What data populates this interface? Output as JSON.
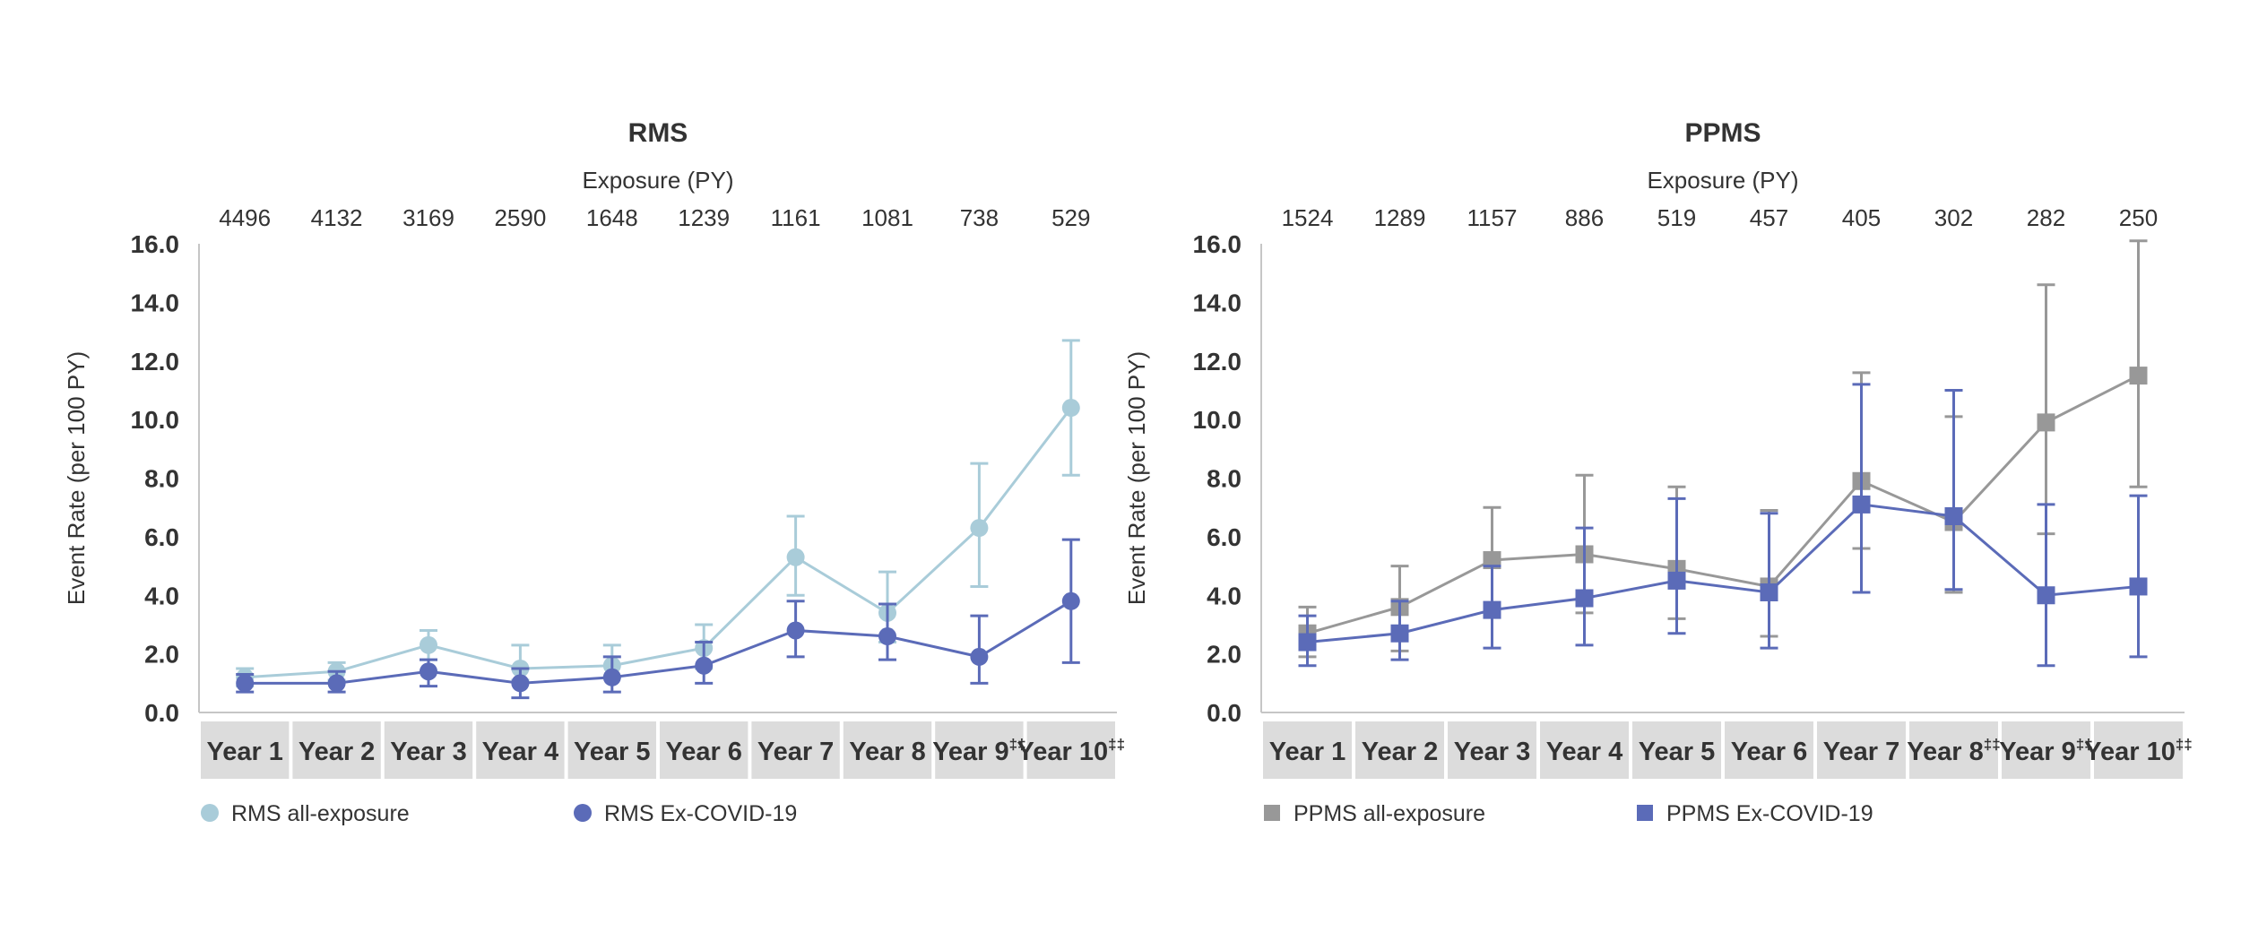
{
  "chart_data": [
    {
      "type": "line",
      "title": "RMS",
      "exposure_label": "Exposure (PY)",
      "exposure": [
        "4496",
        "4132",
        "3169",
        "2590",
        "1648",
        "1239",
        "1161",
        "1081",
        "738",
        "529"
      ],
      "ylabel": "Event Rate (per 100 PY)",
      "ylim": [
        0,
        16
      ],
      "yticks": [
        "0.0",
        "2.0",
        "4.0",
        "6.0",
        "8.0",
        "10.0",
        "12.0",
        "14.0",
        "16.0"
      ],
      "categories": [
        {
          "label": "Year 1",
          "sup": ""
        },
        {
          "label": "Year 2",
          "sup": ""
        },
        {
          "label": "Year 3",
          "sup": ""
        },
        {
          "label": "Year 4",
          "sup": ""
        },
        {
          "label": "Year 5",
          "sup": ""
        },
        {
          "label": "Year 6",
          "sup": ""
        },
        {
          "label": "Year 7",
          "sup": ""
        },
        {
          "label": "Year 8",
          "sup": ""
        },
        {
          "label": "Year 9",
          "sup": "‡‡"
        },
        {
          "label": "Year 10",
          "sup": "‡‡"
        }
      ],
      "grid": false,
      "legend_position": "bottom",
      "series": [
        {
          "name": "RMS all-exposure",
          "color": "#a9ccd9",
          "marker": "circle",
          "values": [
            1.2,
            1.4,
            2.3,
            1.5,
            1.6,
            2.2,
            5.3,
            3.4,
            6.3,
            10.4
          ],
          "lower": [
            0.9,
            1.1,
            1.8,
            1.1,
            1.2,
            1.5,
            4.0,
            2.4,
            4.3,
            8.1
          ],
          "upper": [
            1.5,
            1.7,
            2.8,
            2.3,
            2.3,
            3.0,
            6.7,
            4.8,
            8.5,
            12.7
          ]
        },
        {
          "name": "RMS Ex-COVID-19",
          "color": "#5b6bb8",
          "marker": "circle",
          "values": [
            1.0,
            1.0,
            1.4,
            1.0,
            1.2,
            1.6,
            2.8,
            2.6,
            1.9,
            3.8
          ],
          "lower": [
            0.7,
            0.7,
            0.9,
            0.5,
            0.7,
            1.0,
            1.9,
            1.8,
            1.0,
            1.7
          ],
          "upper": [
            1.3,
            1.4,
            1.8,
            1.5,
            1.9,
            2.4,
            3.8,
            3.7,
            3.3,
            5.9
          ]
        }
      ]
    },
    {
      "type": "line",
      "title": "PPMS",
      "exposure_label": "Exposure (PY)",
      "exposure": [
        "1524",
        "1289",
        "1157",
        "886",
        "519",
        "457",
        "405",
        "302",
        "282",
        "250"
      ],
      "ylabel": "Event Rate (per 100 PY)",
      "ylim": [
        0,
        16
      ],
      "yticks": [
        "0.0",
        "2.0",
        "4.0",
        "6.0",
        "8.0",
        "10.0",
        "12.0",
        "14.0",
        "16.0"
      ],
      "categories": [
        {
          "label": "Year 1",
          "sup": ""
        },
        {
          "label": "Year 2",
          "sup": ""
        },
        {
          "label": "Year 3",
          "sup": ""
        },
        {
          "label": "Year 4",
          "sup": ""
        },
        {
          "label": "Year 5",
          "sup": ""
        },
        {
          "label": "Year 6",
          "sup": ""
        },
        {
          "label": "Year 7",
          "sup": ""
        },
        {
          "label": "Year 8",
          "sup": "‡‡"
        },
        {
          "label": "Year 9",
          "sup": "‡‡"
        },
        {
          "label": "Year 10",
          "sup": "‡‡"
        }
      ],
      "grid": false,
      "legend_position": "bottom",
      "series": [
        {
          "name": "PPMS all-exposure",
          "color": "#989898",
          "marker": "square",
          "values": [
            2.7,
            3.6,
            5.2,
            5.4,
            4.9,
            4.3,
            7.9,
            6.5,
            9.9,
            11.5
          ],
          "lower": [
            1.9,
            2.1,
            3.7,
            3.4,
            3.2,
            2.6,
            5.6,
            4.1,
            6.1,
            7.7
          ],
          "upper": [
            3.6,
            5.0,
            7.0,
            8.1,
            7.7,
            6.9,
            11.6,
            10.1,
            14.6,
            16.1
          ]
        },
        {
          "name": "PPMS Ex-COVID-19",
          "color": "#5b6bb8",
          "marker": "square",
          "values": [
            2.4,
            2.7,
            3.5,
            3.9,
            4.5,
            4.1,
            7.1,
            6.7,
            4.0,
            4.3
          ],
          "lower": [
            1.6,
            1.8,
            2.2,
            2.3,
            2.7,
            2.2,
            4.1,
            4.2,
            1.6,
            1.9
          ],
          "upper": [
            3.3,
            3.8,
            5.0,
            6.3,
            7.3,
            6.8,
            11.2,
            11.0,
            7.1,
            7.4
          ]
        }
      ]
    }
  ]
}
